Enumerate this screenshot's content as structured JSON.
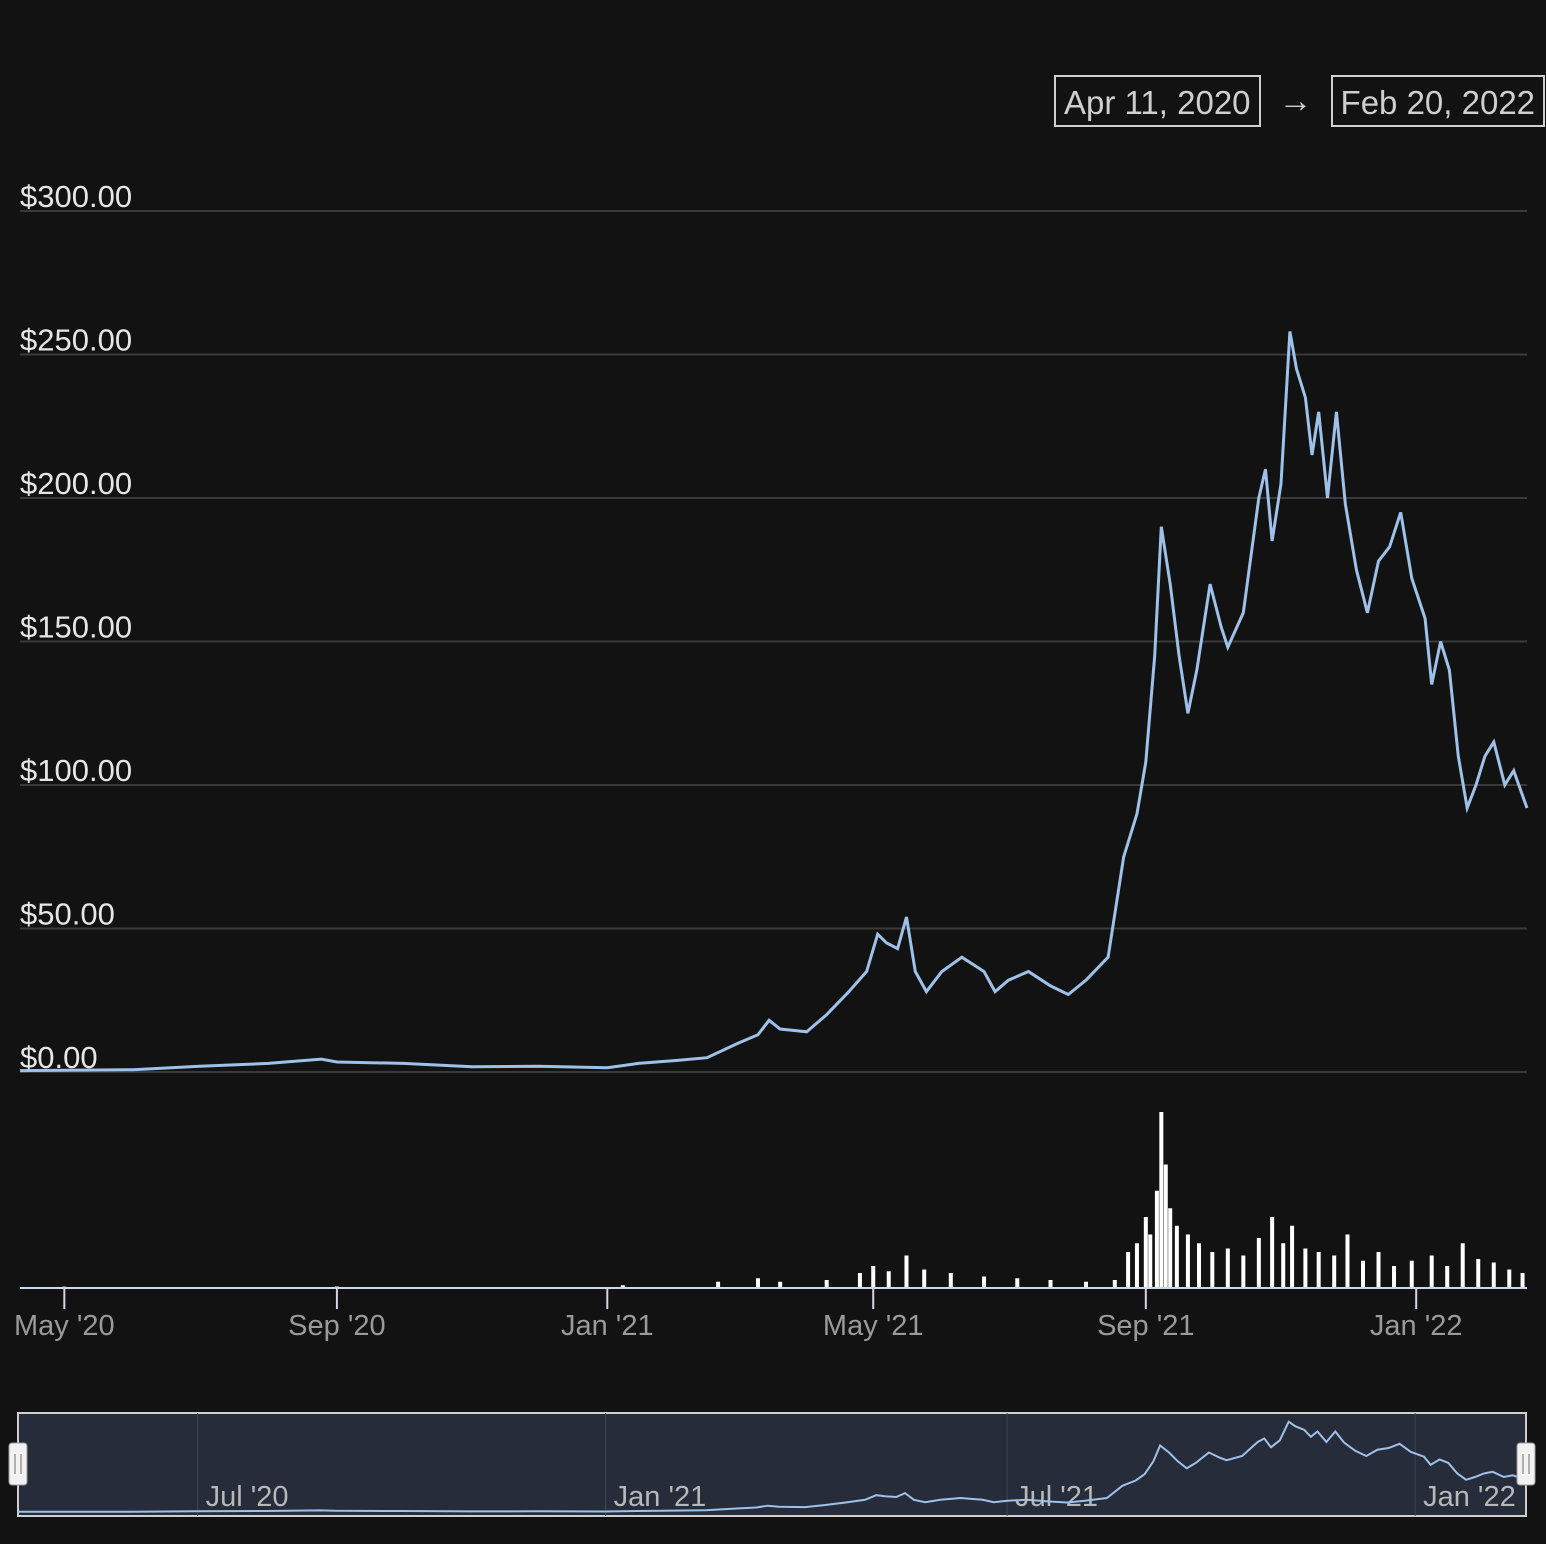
{
  "range_selector": {
    "from": "Apr 11, 2020",
    "arrow": "→",
    "to": "Feb 20, 2022"
  },
  "colors": {
    "background": "#121212",
    "price_line": "#9ec1ea",
    "volume_bars": "#ffffff",
    "grid": "#3a3a3a",
    "navigator_fill": "#262c3a"
  },
  "chart_data": {
    "type": "line",
    "y_ticks": [
      "$300.00",
      "$250.00",
      "$200.00",
      "$150.00",
      "$100.00",
      "$50.00",
      "$0.00"
    ],
    "ylim": [
      0,
      300
    ],
    "x_ticks": [
      "May '20",
      "Sep '20",
      "Jan '21",
      "May '21",
      "Sep '21",
      "Jan '22"
    ],
    "xlim": [
      "2020-04-11",
      "2022-02-20"
    ],
    "grid": "horizontal",
    "series": [
      {
        "values": [
          [
            "2020-04-11",
            0.5
          ],
          [
            "2020-06-01",
            0.8
          ],
          [
            "2020-07-01",
            2
          ],
          [
            "2020-08-01",
            3
          ],
          [
            "2020-08-25",
            4.5
          ],
          [
            "2020-09-01",
            3.5
          ],
          [
            "2020-10-01",
            3
          ],
          [
            "2020-11-01",
            1.8
          ],
          [
            "2020-12-01",
            2
          ],
          [
            "2021-01-01",
            1.5
          ],
          [
            "2021-01-15",
            3
          ],
          [
            "2021-02-01",
            4
          ],
          [
            "2021-02-15",
            5
          ],
          [
            "2021-03-01",
            10
          ],
          [
            "2021-03-10",
            13
          ],
          [
            "2021-03-15",
            18
          ],
          [
            "2021-03-20",
            15
          ],
          [
            "2021-04-01",
            14
          ],
          [
            "2021-04-10",
            20
          ],
          [
            "2021-04-20",
            28
          ],
          [
            "2021-04-28",
            35
          ],
          [
            "2021-05-03",
            48
          ],
          [
            "2021-05-07",
            45
          ],
          [
            "2021-05-12",
            43
          ],
          [
            "2021-05-16",
            54
          ],
          [
            "2021-05-20",
            35
          ],
          [
            "2021-05-25",
            28
          ],
          [
            "2021-06-01",
            35
          ],
          [
            "2021-06-10",
            40
          ],
          [
            "2021-06-20",
            35
          ],
          [
            "2021-06-25",
            28
          ],
          [
            "2021-07-01",
            32
          ],
          [
            "2021-07-10",
            35
          ],
          [
            "2021-07-20",
            30
          ],
          [
            "2021-07-28",
            27
          ],
          [
            "2021-08-05",
            32
          ],
          [
            "2021-08-15",
            40
          ],
          [
            "2021-08-22",
            75
          ],
          [
            "2021-08-28",
            90
          ],
          [
            "2021-09-01",
            108
          ],
          [
            "2021-09-05",
            145
          ],
          [
            "2021-09-08",
            190
          ],
          [
            "2021-09-12",
            170
          ],
          [
            "2021-09-16",
            145
          ],
          [
            "2021-09-20",
            125
          ],
          [
            "2021-09-24",
            140
          ],
          [
            "2021-09-30",
            170
          ],
          [
            "2021-10-05",
            155
          ],
          [
            "2021-10-08",
            148
          ],
          [
            "2021-10-15",
            160
          ],
          [
            "2021-10-22",
            200
          ],
          [
            "2021-10-25",
            210
          ],
          [
            "2021-10-28",
            185
          ],
          [
            "2021-11-01",
            205
          ],
          [
            "2021-11-05",
            258
          ],
          [
            "2021-11-08",
            245
          ],
          [
            "2021-11-12",
            235
          ],
          [
            "2021-11-15",
            215
          ],
          [
            "2021-11-18",
            230
          ],
          [
            "2021-11-22",
            200
          ],
          [
            "2021-11-26",
            230
          ],
          [
            "2021-11-30",
            198
          ],
          [
            "2021-12-05",
            175
          ],
          [
            "2021-12-10",
            160
          ],
          [
            "2021-12-15",
            178
          ],
          [
            "2021-12-20",
            183
          ],
          [
            "2021-12-25",
            195
          ],
          [
            "2021-12-30",
            172
          ],
          [
            "2022-01-05",
            158
          ],
          [
            "2022-01-08",
            135
          ],
          [
            "2022-01-12",
            150
          ],
          [
            "2022-01-16",
            140
          ],
          [
            "2022-01-20",
            110
          ],
          [
            "2022-01-24",
            92
          ],
          [
            "2022-01-28",
            100
          ],
          [
            "2022-02-01",
            110
          ],
          [
            "2022-02-05",
            115
          ],
          [
            "2022-02-10",
            100
          ],
          [
            "2022-02-14",
            105
          ],
          [
            "2022-02-20",
            92
          ]
        ]
      }
    ],
    "volume": [
      [
        "2020-05-01",
        0.2
      ],
      [
        "2020-09-01",
        0.3
      ],
      [
        "2021-01-08",
        1
      ],
      [
        "2021-02-20",
        3
      ],
      [
        "2021-03-10",
        5
      ],
      [
        "2021-03-20",
        3
      ],
      [
        "2021-04-10",
        4
      ],
      [
        "2021-04-25",
        8
      ],
      [
        "2021-05-01",
        12
      ],
      [
        "2021-05-08",
        9
      ],
      [
        "2021-05-16",
        18
      ],
      [
        "2021-05-24",
        10
      ],
      [
        "2021-06-05",
        8
      ],
      [
        "2021-06-20",
        6
      ],
      [
        "2021-07-05",
        5
      ],
      [
        "2021-07-20",
        4
      ],
      [
        "2021-08-05",
        3
      ],
      [
        "2021-08-18",
        4
      ],
      [
        "2021-08-24",
        20
      ],
      [
        "2021-08-28",
        25
      ],
      [
        "2021-09-01",
        40
      ],
      [
        "2021-09-03",
        30
      ],
      [
        "2021-09-06",
        55
      ],
      [
        "2021-09-08",
        100
      ],
      [
        "2021-09-10",
        70
      ],
      [
        "2021-09-12",
        45
      ],
      [
        "2021-09-15",
        35
      ],
      [
        "2021-09-20",
        30
      ],
      [
        "2021-09-25",
        25
      ],
      [
        "2021-10-01",
        20
      ],
      [
        "2021-10-08",
        22
      ],
      [
        "2021-10-15",
        18
      ],
      [
        "2021-10-22",
        28
      ],
      [
        "2021-10-28",
        40
      ],
      [
        "2021-11-02",
        25
      ],
      [
        "2021-11-06",
        35
      ],
      [
        "2021-11-12",
        22
      ],
      [
        "2021-11-18",
        20
      ],
      [
        "2021-11-25",
        18
      ],
      [
        "2021-12-01",
        30
      ],
      [
        "2021-12-08",
        15
      ],
      [
        "2021-12-15",
        20
      ],
      [
        "2021-12-22",
        12
      ],
      [
        "2021-12-30",
        15
      ],
      [
        "2022-01-08",
        18
      ],
      [
        "2022-01-15",
        12
      ],
      [
        "2022-01-22",
        25
      ],
      [
        "2022-01-29",
        16
      ],
      [
        "2022-02-05",
        14
      ],
      [
        "2022-02-12",
        10
      ],
      [
        "2022-02-18",
        8
      ]
    ]
  },
  "navigator": {
    "ticks": [
      "Jul '20",
      "Jan '21",
      "Jul '21",
      "Jan '22"
    ]
  }
}
